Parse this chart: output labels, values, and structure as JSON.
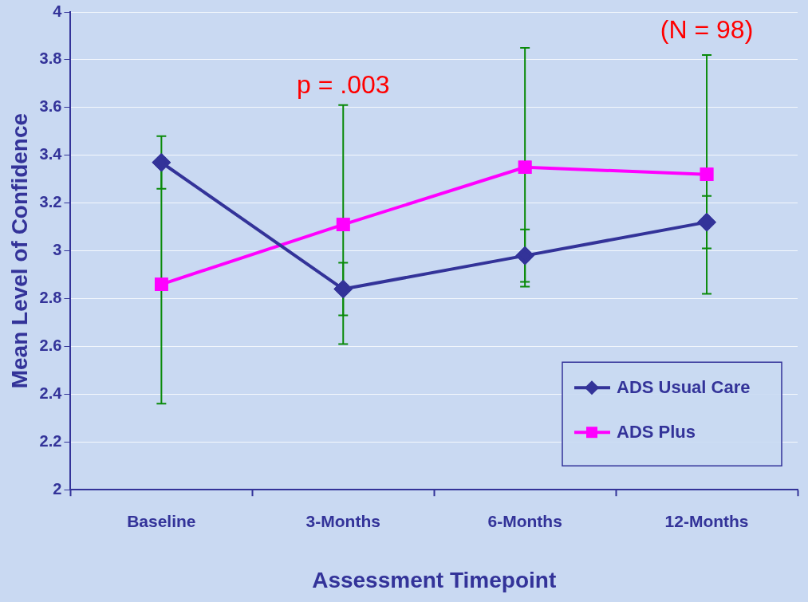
{
  "chart_data": {
    "type": "line",
    "xlabel": "Assessment Timepoint",
    "ylabel": "Mean Level of Confidence",
    "categories": [
      "Baseline",
      "3-Months",
      "6-Months",
      "12-Months"
    ],
    "series": [
      {
        "name": "ADS Usual Care",
        "color": "#333399",
        "marker": "diamond",
        "values": [
          3.37,
          2.84,
          2.98,
          3.12
        ],
        "errors": [
          0.11,
          0.11,
          0.11,
          0.11
        ]
      },
      {
        "name": "ADS Plus",
        "color": "#ff00ff",
        "marker": "square",
        "values": [
          2.86,
          3.11,
          3.35,
          3.32
        ],
        "errors": [
          0.5,
          0.5,
          0.5,
          0.5
        ]
      }
    ],
    "ylim": [
      2,
      4
    ],
    "yticks": [
      2,
      2.2,
      2.4,
      2.6,
      2.8,
      3,
      3.2,
      3.4,
      3.6,
      3.8,
      4
    ],
    "grid": "y",
    "legend": "bottom right",
    "annotations": [
      "p = .003",
      "(N = 98)"
    ]
  }
}
